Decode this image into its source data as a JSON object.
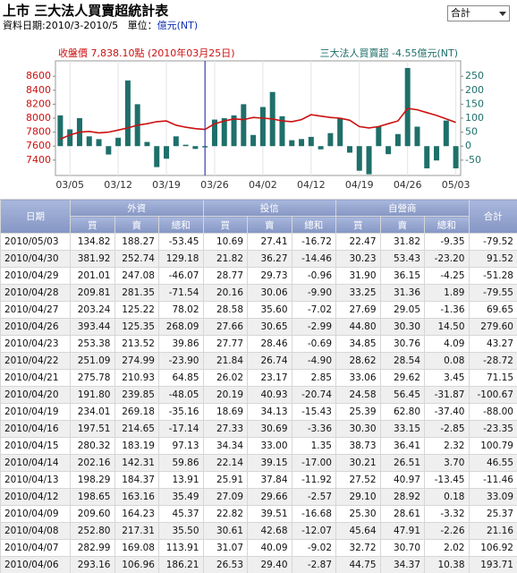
{
  "header": {
    "title": "上市 三大法人買賣超統計表",
    "date_range": "資料日期:2010/3-2010/5",
    "unit_label": "單位：",
    "unit": "億元(NT)",
    "select": "合計"
  },
  "chart_data": {
    "type": "combo",
    "title_left": "收盤價 7,838.10點 (2010年03月25日)",
    "title_right": "三大法人買賣超 -4.55億元(NT)",
    "categories": [
      null,
      "03/05",
      null,
      null,
      null,
      null,
      "03/12",
      null,
      null,
      null,
      null,
      "03/19",
      null,
      null,
      null,
      null,
      "03/26",
      null,
      null,
      null,
      null,
      "04/02",
      null,
      null,
      null,
      null,
      "04/12",
      null,
      null,
      null,
      null,
      "04/19",
      null,
      null,
      null,
      null,
      "04/26",
      null,
      null,
      null,
      null,
      "05/03"
    ],
    "marker_index": 15,
    "series": [
      {
        "type": "line",
        "color": "#cc1111",
        "values": [
          7700,
          7760,
          7800,
          7810,
          7790,
          7800,
          7830,
          7860,
          7900,
          7920,
          7950,
          7960,
          7900,
          7870,
          7850,
          7838.1,
          7920,
          7960,
          7990,
          7980,
          8010,
          8000,
          7990,
          7960,
          7950,
          7980,
          8050,
          8030,
          8010,
          8000,
          7970,
          7880,
          7860,
          7880,
          7920,
          7960,
          8140,
          8120,
          8080,
          8040,
          7990,
          7940
        ]
      },
      {
        "type": "bar",
        "axis": "y2",
        "color": "#1f6f6a",
        "values": [
          110,
          60,
          100,
          35,
          25,
          -30,
          30,
          235,
          150,
          15,
          -75,
          -45,
          35,
          5,
          -10,
          -4.55,
          95,
          100,
          110,
          150,
          40,
          140,
          193.71,
          106.92,
          21.16,
          25.37,
          33.09,
          -11.46,
          46.55,
          100.79,
          -23.35,
          -88,
          -100.67,
          71.15,
          -28.72,
          43.27,
          279.6,
          69.65,
          -79.55,
          -51.28,
          91.52,
          -79.52
        ]
      }
    ],
    "ylim": [
      7180,
      8820
    ],
    "yticks": [
      7400,
      7600,
      7800,
      8000,
      8200,
      8400,
      8600
    ],
    "y2lim": [
      -105,
      305
    ],
    "y2ticks": [
      -50,
      0,
      50,
      100,
      150,
      200,
      250
    ]
  },
  "table": {
    "group_headers": [
      "日期",
      "外資",
      "投信",
      "自營商",
      "合計"
    ],
    "sub_headers": [
      "買",
      "賣",
      "總和",
      "買",
      "賣",
      "總和",
      "買",
      "賣",
      "總和"
    ],
    "rows": [
      [
        "2010/05/03",
        "134.82",
        "188.27",
        "-53.45",
        "10.69",
        "27.41",
        "-16.72",
        "22.47",
        "31.82",
        "-9.35",
        "-79.52"
      ],
      [
        "2010/04/30",
        "381.92",
        "252.74",
        "129.18",
        "21.82",
        "36.27",
        "-14.46",
        "30.23",
        "53.43",
        "-23.20",
        "91.52"
      ],
      [
        "2010/04/29",
        "201.01",
        "247.08",
        "-46.07",
        "28.77",
        "29.73",
        "-0.96",
        "31.90",
        "36.15",
        "-4.25",
        "-51.28"
      ],
      [
        "2010/04/28",
        "209.81",
        "281.35",
        "-71.54",
        "20.16",
        "30.06",
        "-9.90",
        "33.25",
        "31.36",
        "1.89",
        "-79.55"
      ],
      [
        "2010/04/27",
        "203.24",
        "125.22",
        "78.02",
        "28.58",
        "35.60",
        "-7.02",
        "27.69",
        "29.05",
        "-1.36",
        "69.65"
      ],
      [
        "2010/04/26",
        "393.44",
        "125.35",
        "268.09",
        "27.66",
        "30.65",
        "-2.99",
        "44.80",
        "30.30",
        "14.50",
        "279.60"
      ],
      [
        "2010/04/23",
        "253.38",
        "213.52",
        "39.86",
        "27.77",
        "28.46",
        "-0.69",
        "34.85",
        "30.76",
        "4.09",
        "43.27"
      ],
      [
        "2010/04/22",
        "251.09",
        "274.99",
        "-23.90",
        "21.84",
        "26.74",
        "-4.90",
        "28.62",
        "28.54",
        "0.08",
        "-28.72"
      ],
      [
        "2010/04/21",
        "275.78",
        "210.93",
        "64.85",
        "26.02",
        "23.17",
        "2.85",
        "33.06",
        "29.62",
        "3.45",
        "71.15"
      ],
      [
        "2010/04/20",
        "191.80",
        "239.85",
        "-48.05",
        "20.19",
        "40.93",
        "-20.74",
        "24.58",
        "56.45",
        "-31.87",
        "-100.67"
      ],
      [
        "2010/04/19",
        "234.01",
        "269.18",
        "-35.16",
        "18.69",
        "34.13",
        "-15.43",
        "25.39",
        "62.80",
        "-37.40",
        "-88.00"
      ],
      [
        "2010/04/16",
        "197.51",
        "214.65",
        "-17.14",
        "27.33",
        "30.69",
        "-3.36",
        "30.30",
        "33.15",
        "-2.85",
        "-23.35"
      ],
      [
        "2010/04/15",
        "280.32",
        "183.19",
        "97.13",
        "34.34",
        "33.00",
        "1.35",
        "38.73",
        "36.41",
        "2.32",
        "100.79"
      ],
      [
        "2010/04/14",
        "202.16",
        "142.31",
        "59.86",
        "22.14",
        "39.15",
        "-17.00",
        "30.21",
        "26.51",
        "3.70",
        "46.55"
      ],
      [
        "2010/04/13",
        "198.29",
        "184.37",
        "13.91",
        "25.91",
        "37.84",
        "-11.92",
        "27.52",
        "40.97",
        "-13.45",
        "-11.46"
      ],
      [
        "2010/04/12",
        "198.65",
        "163.16",
        "35.49",
        "27.09",
        "29.66",
        "-2.57",
        "29.10",
        "28.92",
        "0.18",
        "33.09"
      ],
      [
        "2010/04/09",
        "209.60",
        "164.23",
        "45.37",
        "22.82",
        "39.51",
        "-16.68",
        "25.30",
        "28.61",
        "-3.32",
        "25.37"
      ],
      [
        "2010/04/08",
        "252.80",
        "217.31",
        "35.50",
        "30.61",
        "42.68",
        "-12.07",
        "45.64",
        "47.91",
        "-2.26",
        "21.16"
      ],
      [
        "2010/04/07",
        "282.99",
        "169.08",
        "113.91",
        "31.07",
        "40.09",
        "-9.02",
        "32.72",
        "30.70",
        "2.02",
        "106.92"
      ],
      [
        "2010/04/06",
        "293.16",
        "106.96",
        "186.21",
        "26.53",
        "29.40",
        "-2.87",
        "44.75",
        "34.37",
        "10.38",
        "193.71"
      ]
    ]
  }
}
